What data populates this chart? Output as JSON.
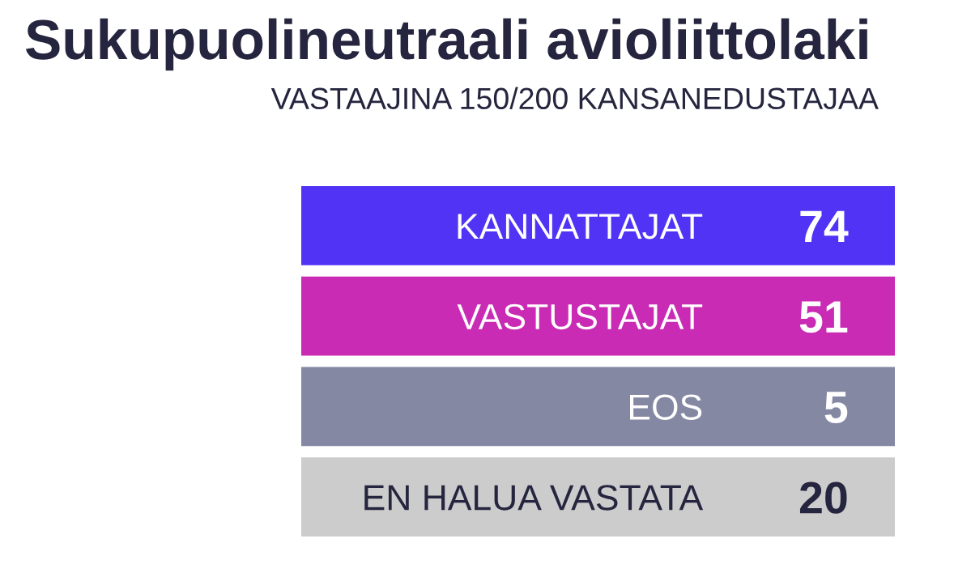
{
  "chart_data": {
    "type": "other",
    "title": "Sukupuolineutraali avioliittolaki",
    "subtitle": "VASTAAJINA 150/200 KANSANEDUSTAJAA",
    "categories": [
      "KANNATTAJAT",
      "VASTUSTAJAT",
      "EOS",
      "EN HALUA VASTATA"
    ],
    "values": [
      74,
      51,
      5,
      20
    ],
    "colors": [
      "#5033f5",
      "#c92bb4",
      "#8588a3",
      "#cccccc"
    ],
    "data_labels": true
  }
}
